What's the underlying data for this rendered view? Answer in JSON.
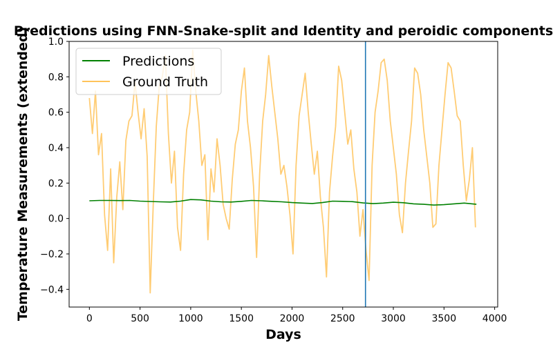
{
  "chart_data": {
    "type": "line",
    "title": "Predictions using FNN-Snake-split and Identity and peroidic components",
    "xlabel": "Days",
    "ylabel": "Temperature Measurements (extended)",
    "xlim": [
      -200,
      4030
    ],
    "ylim": [
      -0.5,
      1.0
    ],
    "xticks": [
      0,
      500,
      1000,
      1500,
      2000,
      2500,
      3000,
      3500,
      4000
    ],
    "yticks": [
      -0.4,
      -0.2,
      0.0,
      0.2,
      0.4,
      0.6,
      0.8,
      1.0
    ],
    "xtick_labels": [
      "0",
      "500",
      "1000",
      "1500",
      "2000",
      "2500",
      "3000",
      "3500",
      "4000"
    ],
    "ytick_labels": [
      "−0.4",
      "−0.2",
      "0.0",
      "0.2",
      "0.4",
      "0.6",
      "0.8",
      "1.0"
    ],
    "grid": false,
    "legend_position": "upper-left",
    "vertical_line": {
      "x": 2725,
      "color": "#1f77b4"
    },
    "series": [
      {
        "name": "Predictions",
        "color": "#008000",
        "x": [
          0,
          100,
          200,
          300,
          400,
          500,
          600,
          700,
          800,
          900,
          1000,
          1100,
          1200,
          1300,
          1400,
          1500,
          1600,
          1700,
          1800,
          1900,
          2000,
          2100,
          2200,
          2300,
          2400,
          2500,
          2600,
          2700,
          2800,
          2900,
          3000,
          3100,
          3200,
          3300,
          3400,
          3500,
          3600,
          3700,
          3820
        ],
        "y": [
          0.1,
          0.102,
          0.102,
          0.101,
          0.102,
          0.098,
          0.096,
          0.094,
          0.093,
          0.098,
          0.107,
          0.105,
          0.098,
          0.094,
          0.093,
          0.097,
          0.102,
          0.1,
          0.097,
          0.094,
          0.09,
          0.087,
          0.085,
          0.09,
          0.098,
          0.097,
          0.095,
          0.088,
          0.084,
          0.087,
          0.092,
          0.089,
          0.083,
          0.08,
          0.076,
          0.078,
          0.083,
          0.087,
          0.08
        ]
      },
      {
        "name": "Ground Truth",
        "color": "#ffc35a",
        "x": [
          0,
          30,
          60,
          90,
          120,
          150,
          180,
          210,
          240,
          270,
          300,
          330,
          360,
          390,
          420,
          450,
          480,
          510,
          540,
          570,
          600,
          630,
          660,
          690,
          720,
          750,
          780,
          810,
          840,
          870,
          900,
          930,
          960,
          990,
          1020,
          1050,
          1080,
          1110,
          1140,
          1170,
          1200,
          1230,
          1260,
          1290,
          1320,
          1350,
          1380,
          1410,
          1440,
          1470,
          1500,
          1530,
          1560,
          1590,
          1620,
          1650,
          1680,
          1710,
          1740,
          1770,
          1800,
          1830,
          1860,
          1890,
          1920,
          1950,
          1980,
          2010,
          2040,
          2070,
          2100,
          2130,
          2160,
          2190,
          2220,
          2250,
          2280,
          2310,
          2340,
          2370,
          2400,
          2430,
          2460,
          2490,
          2520,
          2550,
          2580,
          2610,
          2640,
          2670,
          2700,
          2730,
          2760,
          2790,
          2820,
          2850,
          2880,
          2910,
          2940,
          2970,
          3000,
          3030,
          3060,
          3090,
          3120,
          3150,
          3180,
          3210,
          3240,
          3270,
          3300,
          3330,
          3360,
          3390,
          3420,
          3450,
          3480,
          3510,
          3540,
          3570,
          3600,
          3630,
          3660,
          3690,
          3720,
          3750,
          3780,
          3810
        ],
        "y": [
          0.68,
          0.48,
          0.72,
          0.36,
          0.48,
          0.02,
          -0.18,
          0.28,
          -0.25,
          0.12,
          0.32,
          0.05,
          0.44,
          0.55,
          0.58,
          0.77,
          0.6,
          0.45,
          0.62,
          0.35,
          -0.42,
          0.08,
          0.52,
          0.75,
          0.8,
          0.92,
          0.48,
          0.2,
          0.38,
          -0.05,
          -0.18,
          0.25,
          0.5,
          0.6,
          0.95,
          0.72,
          0.55,
          0.3,
          0.36,
          -0.12,
          0.28,
          0.15,
          0.45,
          0.3,
          0.08,
          0.0,
          -0.06,
          0.22,
          0.42,
          0.5,
          0.72,
          0.85,
          0.55,
          0.4,
          0.18,
          -0.22,
          0.25,
          0.55,
          0.7,
          0.92,
          0.75,
          0.6,
          0.45,
          0.25,
          0.3,
          0.18,
          0.02,
          -0.2,
          0.3,
          0.58,
          0.7,
          0.82,
          0.6,
          0.42,
          0.25,
          0.38,
          0.12,
          -0.05,
          -0.33,
          0.15,
          0.35,
          0.52,
          0.86,
          0.78,
          0.6,
          0.42,
          0.5,
          0.28,
          0.15,
          -0.1,
          0.05,
          -0.18,
          -0.35,
          0.3,
          0.6,
          0.72,
          0.88,
          0.9,
          0.78,
          0.55,
          0.4,
          0.25,
          0.02,
          -0.08,
          0.2,
          0.38,
          0.55,
          0.85,
          0.82,
          0.7,
          0.5,
          0.35,
          0.2,
          -0.05,
          -0.03,
          0.3,
          0.5,
          0.7,
          0.88,
          0.85,
          0.72,
          0.58,
          0.55,
          0.3,
          0.1,
          0.22,
          0.4,
          -0.05
        ]
      }
    ]
  }
}
